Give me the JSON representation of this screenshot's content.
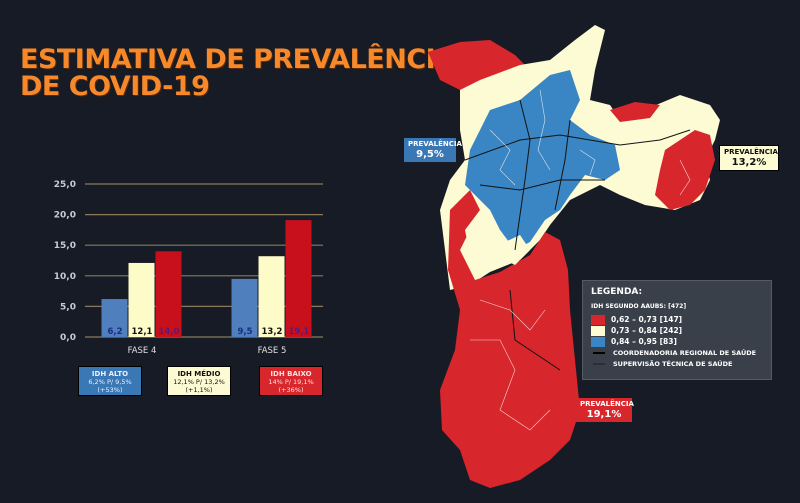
{
  "title": {
    "line1": "ESTIMATIVA DE PREVALÊNCIA",
    "line2": "DE COVID-19"
  },
  "colors": {
    "background": "#161b26",
    "title": "#f7892b",
    "idh_alto": "#4f80bd",
    "idh_medio": "#fdfbc8",
    "idh_baixo": "#c8101c",
    "gridline": "#8a7a5a"
  },
  "chart_data": {
    "type": "bar",
    "title": "",
    "xlabel": "",
    "ylabel": "",
    "categories": [
      "FASE 4",
      "FASE 5"
    ],
    "series": [
      {
        "name": "IDH ALTO",
        "values": [
          6.2,
          9.5
        ],
        "labels": [
          "6,2",
          "9,5"
        ],
        "color": "#4f80bd",
        "label_color": "#1a2a8a"
      },
      {
        "name": "IDH MÉDIO",
        "values": [
          12.1,
          13.2
        ],
        "labels": [
          "12,1",
          "13,2"
        ],
        "color": "#fdfbc8",
        "label_color": "#111111"
      },
      {
        "name": "IDH BAIXO",
        "values": [
          14.0,
          19.1
        ],
        "labels": [
          "14,0",
          "19,1"
        ],
        "color": "#c8101c",
        "label_color": "#5a1a7a"
      }
    ],
    "ylim": [
      0,
      25
    ],
    "yticks": [
      0,
      5,
      10,
      15,
      20,
      25
    ],
    "ytick_labels": [
      "0,0",
      "5,0",
      "10,0",
      "15,0",
      "20,0",
      "25,0"
    ],
    "grid": true
  },
  "summary_boxes": [
    {
      "heading": "IDH ALTO",
      "line1": "6,2% P/ 9,5%",
      "line2": "(+53%)"
    },
    {
      "heading": "IDH MÉDIO",
      "line1": "12,1% P/ 13,2%",
      "line2": "(+1,1%)"
    },
    {
      "heading": "IDH BAIXO",
      "line1": "14% P/ 19,1%",
      "line2": "(+36%)"
    }
  ],
  "map": {
    "callouts": [
      {
        "label": "PREVALÊNCIA",
        "value": "9,5%"
      },
      {
        "label": "PREVALÊNCIA",
        "value": "13,2%"
      },
      {
        "label": "PREVALÊNCIA",
        "value": "19,1%"
      }
    ],
    "legend": {
      "title": "LEGENDA:",
      "subtitle": "IDH SEGUNDO AAUBS: [472]",
      "items": [
        {
          "label": "0,62  –  0,73 [147]",
          "color": "#d8262d"
        },
        {
          "label": "0,73  –  0,84 [242]",
          "color": "#fdfbd3"
        },
        {
          "label": "0,84  –  0,95  [83]",
          "color": "#3a86c4"
        }
      ],
      "lines": [
        {
          "label": "COORDENADORIA REGIONAL DE SAÚDE"
        },
        {
          "label": "SUPERVISÃO TÉCNICA DE SAÚDE"
        }
      ]
    }
  }
}
